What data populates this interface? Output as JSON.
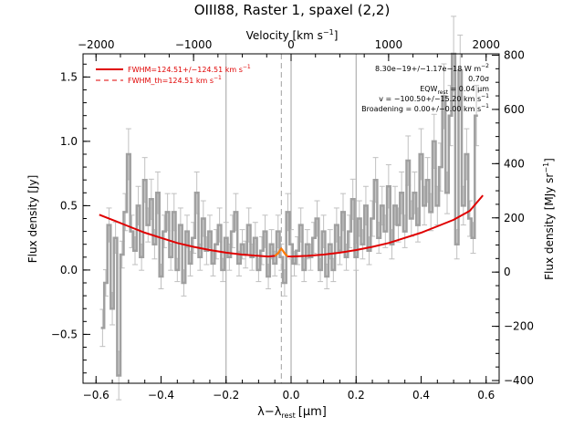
{
  "chart_data": {
    "type": "line",
    "title": "OIII88, Raster 1, spaxel (2,2)",
    "xlabel": "λ−λ",
    "xlabel_sub": "rest",
    "xlabel_unit": "[μm]",
    "ylabel": "Flux density [Jy]",
    "ylabel_right_main": "Flux density [MJy sr",
    "ylabel_right_sup": "−1",
    "ylabel_right_end": "]",
    "top_axis_label": "Velocity [km s",
    "top_axis_label_sup": "−1",
    "top_axis_label_end": "]",
    "xlim": [
      -0.64,
      0.64
    ],
    "ylim": [
      -0.88,
      1.68
    ],
    "y2lim": [
      -410,
      805
    ],
    "x_ticks": [
      "−0.6",
      "−0.4",
      "−0.2",
      "0.0",
      "0.2",
      "0.4",
      "0.6"
    ],
    "y_ticks": [
      "−0.5",
      "0.0",
      "0.5",
      "1.0",
      "1.5"
    ],
    "y2_ticks": [
      "−400",
      "−200",
      "0",
      "200",
      "400",
      "600",
      "800"
    ],
    "top_ticks": [
      "−2000",
      "−1000",
      "0",
      "1000",
      "2000"
    ],
    "vertical_lines": {
      "solid": [
        -0.2,
        0.0,
        0.2
      ],
      "dashed": [
        -0.03
      ]
    },
    "legend": {
      "placement": "top-left",
      "entries": [
        {
          "label": "FWHM=124.51+/−124.51 km s",
          "sup": "−1",
          "style": "solid",
          "color": "#e00000"
        },
        {
          "label": "FWHM_th=124.51 km s",
          "sup": "−1",
          "style": "dashed",
          "color": "#e00000"
        }
      ]
    },
    "annotations": {
      "line1": "8.30e−19+/−1.17e−18 W m",
      "line1_sup": "−2",
      "line2": "0.70σ",
      "line3": "EQW",
      "line3_sub": "rest",
      "line3_end": " = 0.04 μm",
      "line4": "v = −100.50+/−15.20 km s",
      "line4_sup": "−1",
      "line5": "Broadening = 0.00+/−0.00 km s",
      "line5_sup": "−1"
    },
    "series": [
      {
        "style": "step",
        "color": "#a0a0a0",
        "x": [
          -0.58,
          -0.57,
          -0.56,
          -0.55,
          -0.54,
          -0.53,
          -0.52,
          -0.51,
          -0.5,
          -0.49,
          -0.48,
          -0.47,
          -0.46,
          -0.45,
          -0.44,
          -0.43,
          -0.42,
          -0.41,
          -0.4,
          -0.39,
          -0.38,
          -0.37,
          -0.36,
          -0.35,
          -0.34,
          -0.33,
          -0.32,
          -0.31,
          -0.3,
          -0.29,
          -0.28,
          -0.27,
          -0.26,
          -0.25,
          -0.24,
          -0.23,
          -0.22,
          -0.21,
          -0.2,
          -0.19,
          -0.18,
          -0.17,
          -0.16,
          -0.15,
          -0.14,
          -0.13,
          -0.12,
          -0.11,
          -0.1,
          -0.09,
          -0.08,
          -0.07,
          -0.06,
          -0.05,
          -0.04,
          -0.03,
          -0.02,
          -0.01,
          0.0,
          0.01,
          0.02,
          0.03,
          0.04,
          0.05,
          0.06,
          0.07,
          0.08,
          0.09,
          0.1,
          0.11,
          0.12,
          0.13,
          0.14,
          0.15,
          0.16,
          0.17,
          0.18,
          0.19,
          0.2,
          0.21,
          0.22,
          0.23,
          0.24,
          0.25,
          0.26,
          0.27,
          0.28,
          0.29,
          0.3,
          0.31,
          0.32,
          0.33,
          0.34,
          0.35,
          0.36,
          0.37,
          0.38,
          0.39,
          0.4,
          0.41,
          0.42,
          0.43,
          0.44,
          0.45,
          0.46,
          0.47,
          0.48,
          0.49,
          0.5,
          0.51,
          0.52,
          0.53,
          0.54,
          0.55,
          0.56,
          0.57
        ],
        "y": [
          -0.45,
          -0.1,
          0.35,
          -0.3,
          0.25,
          -0.82,
          0.12,
          0.45,
          0.9,
          0.3,
          0.15,
          0.5,
          0.1,
          0.7,
          0.35,
          0.55,
          0.2,
          0.6,
          -0.05,
          0.3,
          0.45,
          0.1,
          0.45,
          0.0,
          0.35,
          -0.1,
          0.3,
          0.05,
          0.25,
          0.6,
          0.1,
          0.4,
          0.15,
          0.3,
          0.05,
          0.2,
          0.35,
          0.0,
          0.25,
          0.1,
          0.3,
          0.45,
          0.05,
          0.2,
          0.12,
          0.35,
          0.1,
          0.25,
          0.0,
          0.15,
          0.3,
          -0.05,
          0.2,
          0.05,
          0.3,
          0.1,
          -0.1,
          0.45,
          0.2,
          0.05,
          0.15,
          0.35,
          0.0,
          0.2,
          0.1,
          0.25,
          0.4,
          0.0,
          0.3,
          -0.05,
          0.2,
          0.0,
          0.35,
          0.15,
          0.45,
          0.1,
          0.3,
          0.55,
          0.1,
          0.4,
          0.2,
          0.5,
          0.15,
          0.4,
          0.7,
          0.25,
          0.5,
          0.3,
          0.65,
          0.2,
          0.5,
          0.35,
          0.6,
          0.3,
          0.85,
          0.4,
          0.6,
          0.35,
          0.9,
          0.5,
          0.7,
          0.45,
          1.0,
          0.5,
          0.8,
          1.35,
          0.6,
          1.2,
          1.68,
          0.2,
          1.55,
          0.5,
          0.9,
          0.4,
          0.25,
          1.2
        ]
      },
      {
        "style": "line",
        "color": "#e00000",
        "x": [
          -0.59,
          -0.55,
          -0.5,
          -0.45,
          -0.4,
          -0.35,
          -0.3,
          -0.25,
          -0.2,
          -0.15,
          -0.1,
          -0.07,
          -0.05,
          -0.04,
          -0.035,
          -0.03,
          -0.025,
          -0.02,
          -0.015,
          -0.01,
          0.0,
          0.05,
          0.1,
          0.15,
          0.2,
          0.25,
          0.3,
          0.35,
          0.4,
          0.45,
          0.5,
          0.55,
          0.59
        ],
        "y": [
          0.43,
          0.39,
          0.34,
          0.29,
          0.25,
          0.21,
          0.18,
          0.155,
          0.135,
          0.12,
          0.11,
          0.105,
          0.11,
          0.13,
          0.15,
          0.165,
          0.15,
          0.13,
          0.115,
          0.106,
          0.105,
          0.11,
          0.12,
          0.135,
          0.155,
          0.18,
          0.21,
          0.25,
          0.29,
          0.34,
          0.39,
          0.46,
          0.58
        ]
      },
      {
        "style": "line",
        "color": "#ff8000",
        "x": [
          -0.05,
          -0.04,
          -0.035,
          -0.03,
          -0.025,
          -0.02,
          -0.01
        ],
        "y": [
          0.11,
          0.13,
          0.15,
          0.165,
          0.15,
          0.13,
          0.106
        ]
      }
    ]
  }
}
